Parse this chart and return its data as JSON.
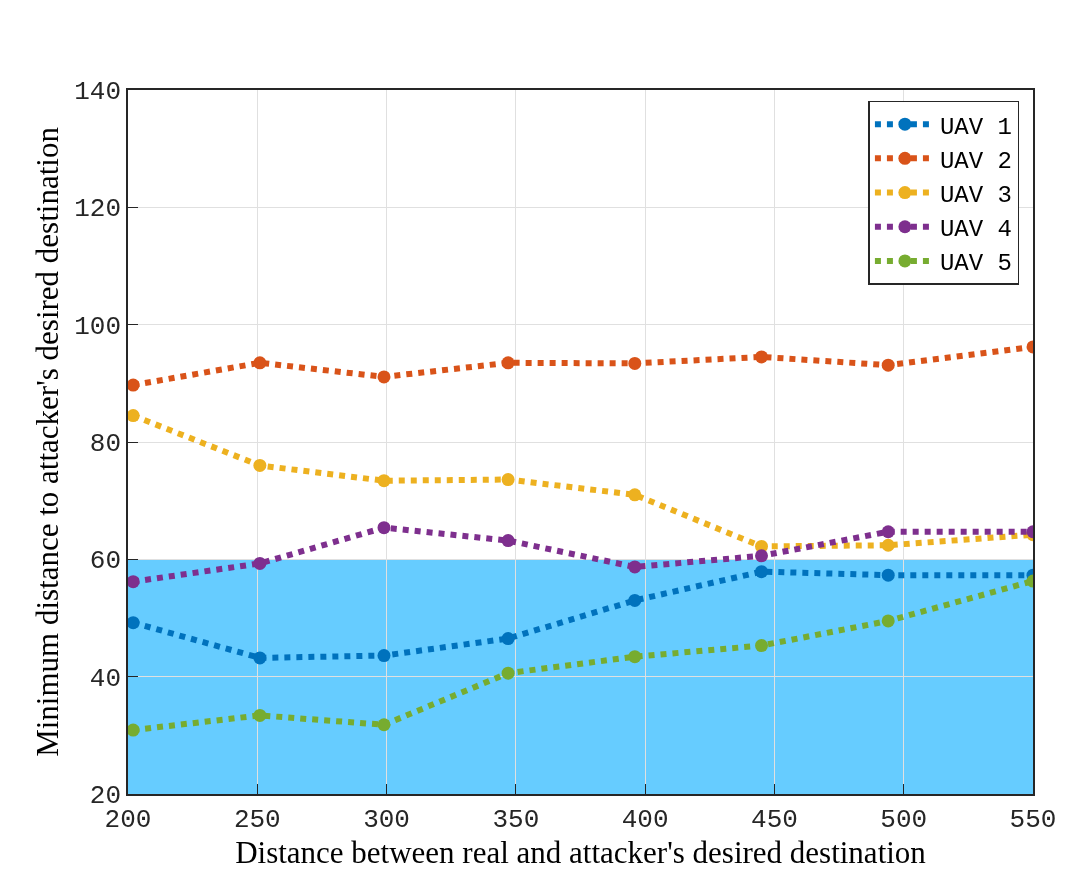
{
  "chart_data": {
    "type": "line",
    "xlabel": "Distance between real and attacker's desired destination",
    "ylabel": "Minimum distance to attacker's desired destination",
    "x": [
      202,
      251,
      299,
      347,
      396,
      445,
      494,
      550
    ],
    "series": [
      {
        "name": "UAV 1",
        "color": "#0072bd",
        "values": [
          49.2,
          43.2,
          43.6,
          46.5,
          53.0,
          57.9,
          57.3,
          57.3
        ]
      },
      {
        "name": "UAV 2",
        "color": "#d95319",
        "values": [
          89.7,
          93.5,
          91.1,
          93.5,
          93.4,
          94.5,
          93.1,
          96.2
        ]
      },
      {
        "name": "UAV 3",
        "color": "#edb120",
        "values": [
          84.5,
          76.0,
          73.4,
          73.6,
          71.0,
          62.2,
          62.4,
          64.2
        ]
      },
      {
        "name": "UAV 4",
        "color": "#7e2f8e",
        "values": [
          56.2,
          59.3,
          65.4,
          63.2,
          58.7,
          60.6,
          64.7,
          64.7
        ]
      },
      {
        "name": "UAV 5",
        "color": "#77ac30",
        "values": [
          30.9,
          33.4,
          31.8,
          40.6,
          43.4,
          45.3,
          49.5,
          56.3
        ]
      }
    ],
    "xlim": [
      200,
      550
    ],
    "xticks": [
      200,
      250,
      300,
      350,
      400,
      450,
      500,
      550
    ],
    "ylim": [
      20,
      140
    ],
    "yticks": [
      20,
      40,
      60,
      80,
      100,
      120,
      140
    ],
    "bands": [
      {
        "axis": "y",
        "from": 20,
        "to": 60,
        "color": "#66ccff"
      }
    ],
    "grid": true,
    "legend": "top right",
    "marker": "circle",
    "line_style": "dotted"
  }
}
